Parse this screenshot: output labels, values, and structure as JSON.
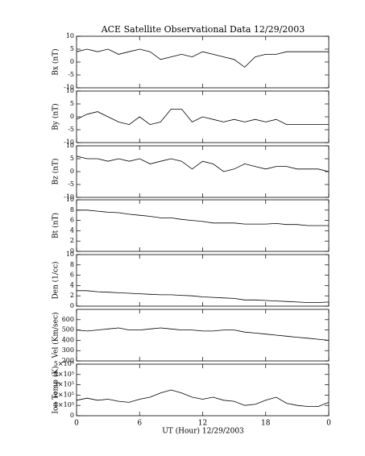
{
  "chart_data": [
    {
      "type": "line",
      "title": "ACE Satellite Observational Data  12/29/2003",
      "ylabel": "Bx (nT)",
      "color": "#000000",
      "ylim": [
        -10,
        10
      ],
      "yticks": [
        -10,
        -5,
        0,
        5,
        10
      ],
      "xlim": [
        0,
        24
      ],
      "x": [
        0,
        1,
        2,
        3,
        4,
        5,
        6,
        7,
        8,
        9,
        10,
        11,
        12,
        13,
        14,
        15,
        16,
        17,
        18,
        19,
        20,
        21,
        22,
        23,
        24
      ],
      "values": [
        4,
        5,
        4,
        5,
        3,
        4,
        5,
        4,
        1,
        2,
        3,
        2,
        4,
        3,
        2,
        1,
        -2,
        2,
        3,
        3,
        4,
        4,
        4,
        4,
        4
      ]
    },
    {
      "type": "line",
      "ylabel": "By (nT)",
      "color": "#000000",
      "ylim": [
        -10,
        10
      ],
      "yticks": [
        -10,
        -5,
        0,
        5,
        10
      ],
      "xlim": [
        0,
        24
      ],
      "x": [
        0,
        1,
        2,
        3,
        4,
        5,
        6,
        7,
        8,
        9,
        10,
        11,
        12,
        13,
        14,
        15,
        16,
        17,
        18,
        19,
        20,
        21,
        22,
        23,
        24
      ],
      "values": [
        -1,
        1,
        2,
        0,
        -2,
        -3,
        0,
        -3,
        -2,
        3,
        3,
        -2,
        0,
        -1,
        -2,
        -1,
        -2,
        -1,
        -2,
        -1,
        -3,
        -3,
        -3,
        -3,
        -3
      ]
    },
    {
      "type": "line",
      "ylabel": "Bz (nT)",
      "color": "#000000",
      "ylim": [
        -10,
        10
      ],
      "yticks": [
        -10,
        -5,
        0,
        5,
        10
      ],
      "xlim": [
        0,
        24
      ],
      "x": [
        0,
        1,
        2,
        3,
        4,
        5,
        6,
        7,
        8,
        9,
        10,
        11,
        12,
        13,
        14,
        15,
        16,
        17,
        18,
        19,
        20,
        21,
        22,
        23,
        24
      ],
      "values": [
        6,
        5,
        5,
        4,
        5,
        4,
        5,
        3,
        4,
        5,
        4,
        1,
        4,
        3,
        0,
        1,
        3,
        2,
        1,
        2,
        2,
        1,
        1,
        1,
        0
      ]
    },
    {
      "type": "line",
      "ylabel": "Bt (nT)",
      "color": "#000000",
      "ylim": [
        0,
        10
      ],
      "yticks": [
        0,
        2,
        4,
        6,
        8,
        10
      ],
      "xlim": [
        0,
        24
      ],
      "x": [
        0,
        1,
        2,
        3,
        4,
        5,
        6,
        7,
        8,
        9,
        10,
        11,
        12,
        13,
        14,
        15,
        16,
        17,
        18,
        19,
        20,
        21,
        22,
        23,
        24
      ],
      "values": [
        8,
        8,
        7.8,
        7.6,
        7.5,
        7.2,
        7,
        6.8,
        6.5,
        6.5,
        6.2,
        6,
        5.8,
        5.5,
        5.5,
        5.5,
        5.3,
        5.3,
        5.3,
        5.4,
        5.2,
        5.2,
        5,
        5,
        5
      ]
    },
    {
      "type": "line",
      "ylabel": "Den (1/cc)",
      "color": "#000000",
      "ylim": [
        0,
        10
      ],
      "yticks": [
        0,
        2,
        4,
        6,
        8,
        10
      ],
      "xlim": [
        0,
        24
      ],
      "x": [
        0,
        1,
        2,
        3,
        4,
        5,
        6,
        7,
        8,
        9,
        10,
        11,
        12,
        13,
        14,
        15,
        16,
        17,
        18,
        19,
        20,
        21,
        22,
        23,
        24
      ],
      "values": [
        3,
        3,
        2.8,
        2.7,
        2.6,
        2.5,
        2.4,
        2.3,
        2.2,
        2.2,
        2.1,
        2,
        1.8,
        1.7,
        1.6,
        1.5,
        1.2,
        1.2,
        1.1,
        1,
        0.9,
        0.8,
        0.7,
        0.7,
        0.8
      ]
    },
    {
      "type": "line",
      "ylabel": "Vel (Km/sec)",
      "color": "#000000",
      "ylim": [
        200,
        700
      ],
      "yticks": [
        200,
        300,
        400,
        500,
        600
      ],
      "xlim": [
        0,
        24
      ],
      "x": [
        0,
        1,
        2,
        3,
        4,
        5,
        6,
        7,
        8,
        9,
        10,
        11,
        12,
        13,
        14,
        15,
        16,
        17,
        18,
        19,
        20,
        21,
        22,
        23,
        24
      ],
      "values": [
        500,
        490,
        500,
        510,
        520,
        500,
        500,
        510,
        520,
        510,
        500,
        500,
        490,
        490,
        500,
        500,
        480,
        470,
        460,
        450,
        440,
        430,
        420,
        410,
        400
      ]
    },
    {
      "type": "line",
      "ylabel": "Ion Temp (K)",
      "xlabel": "UT (Hour)  12/29/2003",
      "color": "#000000",
      "ylim": [
        0,
        500000
      ],
      "yticks": [
        0,
        {
          "value": 100000,
          "label": "1×10⁵"
        },
        {
          "value": 200000,
          "label": "2×10⁵"
        },
        {
          "value": 300000,
          "label": "3×10⁵"
        },
        {
          "value": 400000,
          "label": "4×10⁵"
        },
        {
          "value": 500000,
          "label": "5×10⁵"
        }
      ],
      "xlim": [
        0,
        24
      ],
      "xticks": [
        0,
        6,
        12,
        18,
        {
          "value": 24,
          "label": "0"
        }
      ],
      "x": [
        0,
        1,
        2,
        3,
        4,
        5,
        6,
        7,
        8,
        9,
        10,
        11,
        12,
        13,
        14,
        15,
        16,
        17,
        18,
        19,
        20,
        21,
        22,
        23,
        24
      ],
      "values": [
        150000,
        170000,
        150000,
        160000,
        140000,
        130000,
        160000,
        180000,
        220000,
        250000,
        220000,
        180000,
        160000,
        180000,
        150000,
        140000,
        100000,
        110000,
        150000,
        180000,
        120000,
        100000,
        90000,
        90000,
        130000
      ]
    }
  ]
}
